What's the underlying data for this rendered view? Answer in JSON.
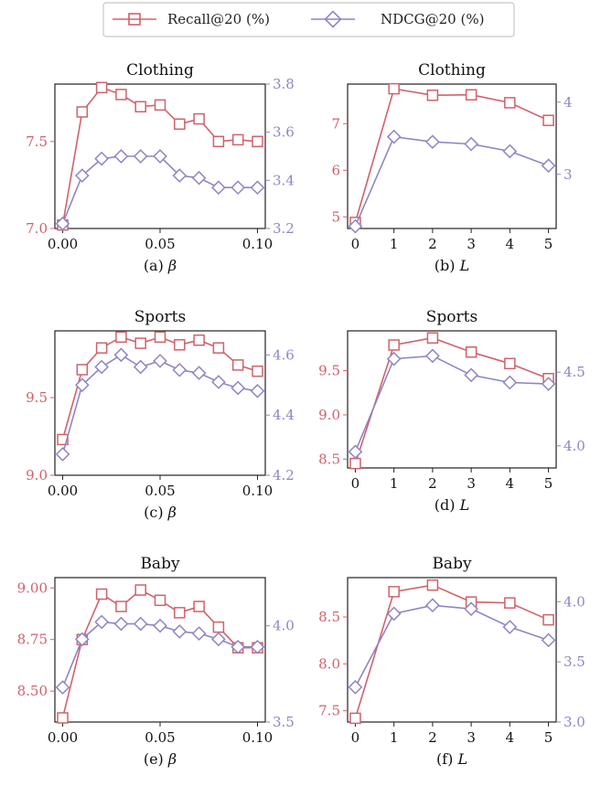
{
  "legend": {
    "recall_label": "Recall@20 (%)",
    "ndcg_label": "NDCG@20 (%)"
  },
  "colors": {
    "recall": "#d0626b",
    "ndcg": "#8e86c2",
    "axis": "#222222"
  },
  "chart_data": [
    {
      "type": "line",
      "title": "Clothing",
      "caption": "(a) β",
      "x": [
        0.0,
        0.01,
        0.02,
        0.03,
        0.04,
        0.05,
        0.06,
        0.07,
        0.08,
        0.09,
        0.1
      ],
      "xticks": [
        "0.00",
        "0.05",
        "0.10"
      ],
      "xtick_values": [
        0,
        0.05,
        0.1
      ],
      "xlim": [
        -0.004,
        0.104
      ],
      "series": [
        {
          "name": "Recall@20 (%)",
          "axis": "left",
          "values": [
            7.02,
            7.67,
            7.81,
            7.77,
            7.7,
            7.71,
            7.6,
            7.63,
            7.5,
            7.51,
            7.5
          ]
        },
        {
          "name": "NDCG@20 (%)",
          "axis": "right",
          "values": [
            3.22,
            3.42,
            3.49,
            3.5,
            3.5,
            3.5,
            3.42,
            3.41,
            3.37,
            3.37,
            3.37
          ]
        }
      ],
      "ylim_left": [
        7.0,
        7.83
      ],
      "yticks_left": [
        7.0,
        7.5
      ],
      "ytick_labels_left": [
        "7.0",
        "7.5"
      ],
      "ylim_right": [
        3.2,
        3.8
      ],
      "yticks_right": [
        3.2,
        3.4,
        3.6,
        3.8
      ],
      "ytick_labels_right": [
        "3.2",
        "3.4",
        "3.6",
        "3.8"
      ]
    },
    {
      "type": "line",
      "title": "Clothing",
      "caption": "(b) L",
      "x": [
        0,
        1,
        2,
        3,
        4,
        5
      ],
      "xticks": [
        "0",
        "1",
        "2",
        "3",
        "4",
        "5"
      ],
      "xtick_values": [
        0,
        1,
        2,
        3,
        4,
        5
      ],
      "xlim": [
        -0.2,
        5.2
      ],
      "series": [
        {
          "name": "Recall@20 (%)",
          "axis": "left",
          "values": [
            4.88,
            7.75,
            7.61,
            7.62,
            7.45,
            7.07
          ]
        },
        {
          "name": "NDCG@20 (%)",
          "axis": "right",
          "values": [
            2.28,
            3.52,
            3.45,
            3.42,
            3.32,
            3.12
          ]
        }
      ],
      "ylim_left": [
        4.75,
        7.85
      ],
      "yticks_left": [
        5,
        6,
        7
      ],
      "ytick_labels_left": [
        "5",
        "6",
        "7"
      ],
      "ylim_right": [
        2.25,
        4.25
      ],
      "yticks_right": [
        3,
        4
      ],
      "ytick_labels_right": [
        "3",
        "4"
      ]
    },
    {
      "type": "line",
      "title": "Sports",
      "caption": "(c) β",
      "x": [
        0.0,
        0.01,
        0.02,
        0.03,
        0.04,
        0.05,
        0.06,
        0.07,
        0.08,
        0.09,
        0.1
      ],
      "xticks": [
        "0.00",
        "0.05",
        "0.10"
      ],
      "xtick_values": [
        0,
        0.05,
        0.1
      ],
      "xlim": [
        -0.004,
        0.104
      ],
      "series": [
        {
          "name": "Recall@20 (%)",
          "axis": "left",
          "values": [
            9.23,
            9.68,
            9.82,
            9.89,
            9.85,
            9.89,
            9.84,
            9.87,
            9.82,
            9.71,
            9.67
          ]
        },
        {
          "name": "NDCG@20 (%)",
          "axis": "right",
          "values": [
            4.27,
            4.5,
            4.56,
            4.6,
            4.56,
            4.58,
            4.55,
            4.54,
            4.51,
            4.49,
            4.48
          ]
        }
      ],
      "ylim_left": [
        9.0,
        9.93
      ],
      "yticks_left": [
        9.0,
        9.5
      ],
      "ytick_labels_left": [
        "9.0",
        "9.5"
      ],
      "ylim_right": [
        4.2,
        4.68
      ],
      "yticks_right": [
        4.2,
        4.4,
        4.6
      ],
      "ytick_labels_right": [
        "4.2",
        "4.4",
        "4.6"
      ]
    },
    {
      "type": "line",
      "title": "Sports",
      "caption": "(d) L",
      "x": [
        0,
        1,
        2,
        3,
        4,
        5
      ],
      "xticks": [
        "0",
        "1",
        "2",
        "3",
        "4",
        "5"
      ],
      "xtick_values": [
        0,
        1,
        2,
        3,
        4,
        5
      ],
      "xlim": [
        -0.2,
        5.2
      ],
      "series": [
        {
          "name": "Recall@20 (%)",
          "axis": "left",
          "values": [
            8.45,
            9.79,
            9.87,
            9.71,
            9.58,
            9.41
          ]
        },
        {
          "name": "NDCG@20 (%)",
          "axis": "right",
          "values": [
            3.96,
            4.59,
            4.61,
            4.48,
            4.43,
            4.42
          ]
        }
      ],
      "ylim_left": [
        8.4,
        9.95
      ],
      "yticks_left": [
        8.5,
        9.0,
        9.5
      ],
      "ytick_labels_left": [
        "8.5",
        "9.0",
        "9.5"
      ],
      "ylim_right": [
        3.85,
        4.78
      ],
      "yticks_right": [
        4.0,
        4.5
      ],
      "ytick_labels_right": [
        "4.0",
        "4.5"
      ]
    },
    {
      "type": "line",
      "title": "Baby",
      "caption": "(e) β",
      "x": [
        0.0,
        0.01,
        0.02,
        0.03,
        0.04,
        0.05,
        0.06,
        0.07,
        0.08,
        0.09,
        0.1
      ],
      "xticks": [
        "0.00",
        "0.05",
        "0.10"
      ],
      "xtick_values": [
        0,
        0.05,
        0.1
      ],
      "xlim": [
        -0.004,
        0.104
      ],
      "series": [
        {
          "name": "Recall@20 (%)",
          "axis": "left",
          "values": [
            8.37,
            8.75,
            8.97,
            8.91,
            8.99,
            8.94,
            8.88,
            8.91,
            8.81,
            8.71,
            8.71
          ]
        },
        {
          "name": "NDCG@20 (%)",
          "axis": "right",
          "values": [
            3.68,
            3.93,
            4.02,
            4.01,
            4.01,
            4.0,
            3.97,
            3.96,
            3.93,
            3.89,
            3.89
          ]
        }
      ],
      "ylim_left": [
        8.35,
        9.05
      ],
      "yticks_left": [
        8.5,
        8.75,
        9.0
      ],
      "ytick_labels_left": [
        "8.50",
        "8.75",
        "9.00"
      ],
      "ylim_right": [
        3.5,
        4.25
      ],
      "yticks_right": [
        3.5,
        4.0
      ],
      "ytick_labels_right": [
        "3.5",
        "4.0"
      ]
    },
    {
      "type": "line",
      "title": "Baby",
      "caption": "(f) L",
      "x": [
        0,
        1,
        2,
        3,
        4,
        5
      ],
      "xticks": [
        "0",
        "1",
        "2",
        "3",
        "4",
        "5"
      ],
      "xtick_values": [
        0,
        1,
        2,
        3,
        4,
        5
      ],
      "xlim": [
        -0.2,
        5.2
      ],
      "series": [
        {
          "name": "Recall@20 (%)",
          "axis": "left",
          "values": [
            7.42,
            8.77,
            8.84,
            8.66,
            8.65,
            8.47
          ]
        },
        {
          "name": "NDCG@20 (%)",
          "axis": "right",
          "values": [
            3.29,
            3.9,
            3.97,
            3.94,
            3.79,
            3.68
          ]
        }
      ],
      "ylim_left": [
        7.38,
        8.92
      ],
      "yticks_left": [
        7.5,
        8.0,
        8.5
      ],
      "ytick_labels_left": [
        "7.5",
        "8.0",
        "8.5"
      ],
      "ylim_right": [
        3.0,
        4.2
      ],
      "yticks_right": [
        3.0,
        3.5,
        4.0
      ],
      "ytick_labels_right": [
        "3.0",
        "3.5",
        "4.0"
      ]
    }
  ]
}
